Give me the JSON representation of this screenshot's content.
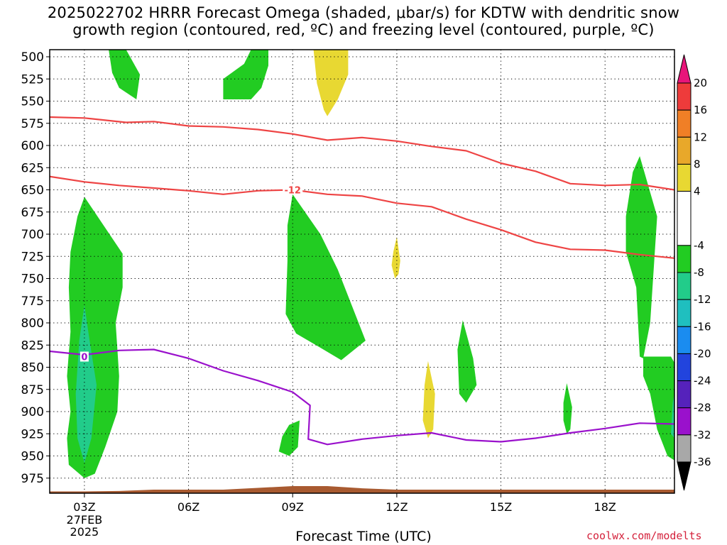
{
  "header": {
    "title_line1": "2025022702 HRRR Forecast Omega (shaded, μbar/s) for KDTW with dendritic snow",
    "title_line2": "growth region (contoured, red, ºC) and freezing level (contoured, purple, ºC)"
  },
  "footer": {
    "xlabel": "Forecast Time (UTC)",
    "credit": "coolwx.com/modelts"
  },
  "chart_data": {
    "type": "heatmap",
    "title": "2025022702 HRRR Forecast Omega (shaded, μbar/s) for KDTW with dendritic snow growth region (contoured, red, ºC) and freezing level (contoured, purple, ºC)",
    "xlabel": "Forecast Time (UTC)",
    "ylabel": "",
    "x_ticks": [
      {
        "hour": 3,
        "label": "03Z",
        "sublabels": [
          "27FEB",
          "2025"
        ]
      },
      {
        "hour": 6,
        "label": "06Z",
        "sublabels": []
      },
      {
        "hour": 9,
        "label": "09Z",
        "sublabels": []
      },
      {
        "hour": 12,
        "label": "12Z",
        "sublabels": []
      },
      {
        "hour": 15,
        "label": "15Z",
        "sublabels": []
      },
      {
        "hour": 18,
        "label": "18Z",
        "sublabels": []
      }
    ],
    "xlim": [
      2,
      20
    ],
    "y_ticks": [
      500,
      525,
      550,
      575,
      600,
      625,
      650,
      675,
      700,
      725,
      750,
      775,
      800,
      825,
      850,
      875,
      900,
      925,
      950,
      975
    ],
    "ylim": [
      492,
      992
    ],
    "grid": true,
    "colorbar": {
      "ticks": [
        20,
        16,
        12,
        8,
        4,
        -4,
        -8,
        -12,
        -16,
        -20,
        -24,
        -28,
        -32,
        -36
      ],
      "bins": [
        {
          "from": 16,
          "to": 20,
          "color": "#ee3b3b"
        },
        {
          "from": 12,
          "to": 16,
          "color": "#f07f26"
        },
        {
          "from": 8,
          "to": 12,
          "color": "#e8a82a"
        },
        {
          "from": 4,
          "to": 8,
          "color": "#e8d832"
        },
        {
          "from": -4,
          "to": 4,
          "color": "#ffffff"
        },
        {
          "from": -8,
          "to": -4,
          "color": "#22cc22"
        },
        {
          "from": -12,
          "to": -8,
          "color": "#22cc8a"
        },
        {
          "from": -16,
          "to": -12,
          "color": "#1fbfbf"
        },
        {
          "from": -20,
          "to": -16,
          "color": "#1a8cf0"
        },
        {
          "from": -24,
          "to": -20,
          "color": "#2244dd"
        },
        {
          "from": -28,
          "to": -24,
          "color": "#5522bb"
        },
        {
          "from": -32,
          "to": -28,
          "color": "#9a11cc"
        },
        {
          "from": -36,
          "to": -32,
          "color": "#a8a8a8"
        }
      ],
      "top_arrow_color": "#e8157a",
      "bottom_arrow_color": "#000000"
    },
    "omega_regions": [
      {
        "color": "#22cc22",
        "points": [
          [
            3.7,
            492
          ],
          [
            4.2,
            492
          ],
          [
            4.6,
            520
          ],
          [
            4.5,
            548
          ],
          [
            4.0,
            535
          ],
          [
            3.8,
            518
          ]
        ]
      },
      {
        "color": "#22cc22",
        "points": [
          [
            7.0,
            525
          ],
          [
            7.6,
            508
          ],
          [
            7.8,
            492
          ],
          [
            8.3,
            492
          ],
          [
            8.3,
            510
          ],
          [
            8.1,
            535
          ],
          [
            7.8,
            548
          ],
          [
            7.0,
            548
          ]
        ]
      },
      {
        "color": "#e8d832",
        "points": [
          [
            9.6,
            492
          ],
          [
            10.6,
            492
          ],
          [
            10.6,
            520
          ],
          [
            10.3,
            548
          ],
          [
            10.0,
            567
          ],
          [
            9.9,
            560
          ],
          [
            9.7,
            530
          ]
        ]
      },
      {
        "color": "#22cc22",
        "points": [
          [
            3.0,
            658
          ],
          [
            4.1,
            722
          ],
          [
            4.1,
            760
          ],
          [
            3.9,
            800
          ],
          [
            4.0,
            860
          ],
          [
            3.95,
            900
          ],
          [
            3.6,
            940
          ],
          [
            3.3,
            970
          ],
          [
            3.0,
            975
          ],
          [
            2.55,
            960
          ],
          [
            2.5,
            930
          ],
          [
            2.6,
            900
          ],
          [
            2.5,
            860
          ],
          [
            2.6,
            810
          ],
          [
            2.55,
            760
          ],
          [
            2.6,
            720
          ],
          [
            2.8,
            680
          ]
        ]
      },
      {
        "color": "#22cc8a",
        "points": [
          [
            3.0,
            780
          ],
          [
            3.15,
            820
          ],
          [
            3.35,
            870
          ],
          [
            3.2,
            930
          ],
          [
            3.0,
            958
          ],
          [
            2.8,
            930
          ],
          [
            2.75,
            880
          ],
          [
            2.85,
            820
          ]
        ]
      },
      {
        "color": "#22cc22",
        "points": [
          [
            9.0,
            655
          ],
          [
            9.8,
            700
          ],
          [
            10.3,
            740
          ],
          [
            11.1,
            820
          ],
          [
            10.4,
            842
          ],
          [
            9.8,
            828
          ],
          [
            9.1,
            812
          ],
          [
            8.8,
            790
          ],
          [
            8.85,
            730
          ],
          [
            8.85,
            690
          ]
        ]
      },
      {
        "color": "#e8d832",
        "points": [
          [
            12.0,
            703
          ],
          [
            12.1,
            730
          ],
          [
            12.05,
            745
          ],
          [
            11.95,
            750
          ],
          [
            11.85,
            735
          ],
          [
            11.9,
            720
          ]
        ]
      },
      {
        "color": "#22cc22",
        "points": [
          [
            8.9,
            915
          ],
          [
            9.2,
            910
          ],
          [
            9.15,
            940
          ],
          [
            8.9,
            950
          ],
          [
            8.6,
            945
          ],
          [
            8.7,
            928
          ]
        ]
      },
      {
        "color": "#e8d832",
        "points": [
          [
            12.9,
            843
          ],
          [
            13.1,
            880
          ],
          [
            13.05,
            920
          ],
          [
            12.9,
            930
          ],
          [
            12.75,
            910
          ],
          [
            12.8,
            870
          ]
        ]
      },
      {
        "color": "#22cc22",
        "points": [
          [
            13.9,
            797
          ],
          [
            14.2,
            840
          ],
          [
            14.3,
            870
          ],
          [
            14.0,
            890
          ],
          [
            13.8,
            880
          ],
          [
            13.75,
            830
          ]
        ]
      },
      {
        "color": "#22cc22",
        "points": [
          [
            16.9,
            868
          ],
          [
            17.05,
            895
          ],
          [
            17.0,
            920
          ],
          [
            16.9,
            925
          ],
          [
            16.8,
            910
          ],
          [
            16.8,
            890
          ]
        ]
      },
      {
        "color": "#22cc22",
        "points": [
          [
            19.0,
            612
          ],
          [
            19.5,
            680
          ],
          [
            19.3,
            800
          ],
          [
            19.1,
            840
          ],
          [
            19.0,
            838
          ],
          [
            18.9,
            760
          ],
          [
            18.6,
            720
          ],
          [
            18.6,
            680
          ],
          [
            18.8,
            630
          ]
        ]
      },
      {
        "color": "#22cc22",
        "points": [
          [
            19.1,
            838
          ],
          [
            19.9,
            838
          ],
          [
            20.0,
            845
          ],
          [
            20.0,
            955
          ],
          [
            19.8,
            950
          ],
          [
            19.5,
            920
          ],
          [
            19.3,
            880
          ],
          [
            19.1,
            860
          ]
        ]
      },
      {
        "color": "#22cc8a",
        "points": [
          [
            19.95,
            890
          ],
          [
            20.0,
            880
          ],
          [
            20.0,
            930
          ],
          [
            19.9,
            925
          ]
        ]
      }
    ],
    "isotherms": [
      {
        "name": "-18 ºC (dendritic top)",
        "color": "#ee4444",
        "label": "",
        "points": [
          [
            2,
            568
          ],
          [
            3,
            569
          ],
          [
            4.2,
            574
          ],
          [
            5,
            573
          ],
          [
            6,
            578
          ],
          [
            7,
            579
          ],
          [
            8,
            582
          ],
          [
            9,
            587
          ],
          [
            10,
            594
          ],
          [
            11,
            591
          ],
          [
            12,
            595
          ],
          [
            13,
            601
          ],
          [
            14,
            606
          ],
          [
            15,
            620
          ],
          [
            16,
            629
          ],
          [
            17,
            643
          ],
          [
            18,
            645
          ],
          [
            19,
            644
          ],
          [
            20,
            650
          ]
        ]
      },
      {
        "name": "-12 ºC (dendritic bottom)",
        "color": "#ee4444",
        "label": "-12",
        "label_at": [
          9.0,
          650
        ],
        "points": [
          [
            2,
            635
          ],
          [
            3,
            641
          ],
          [
            4,
            645
          ],
          [
            5,
            648
          ],
          [
            6,
            651
          ],
          [
            7,
            655
          ],
          [
            8,
            651
          ],
          [
            9,
            650
          ],
          [
            10,
            655
          ],
          [
            11,
            657
          ],
          [
            12,
            665
          ],
          [
            13,
            669
          ],
          [
            14,
            683
          ],
          [
            15,
            695
          ],
          [
            16,
            709
          ],
          [
            17,
            717
          ],
          [
            18,
            718
          ],
          [
            19,
            723
          ],
          [
            20,
            727
          ]
        ]
      },
      {
        "name": "0 ºC (freezing level)",
        "color": "#9a11cc",
        "label": "0",
        "label_at": [
          3.0,
          838
        ],
        "points": [
          [
            2,
            832
          ],
          [
            3,
            836
          ],
          [
            4,
            831
          ],
          [
            5,
            830
          ],
          [
            6,
            840
          ],
          [
            7,
            854
          ],
          [
            8,
            865
          ],
          [
            9,
            878
          ],
          [
            9.5,
            893
          ],
          [
            9.45,
            931
          ],
          [
            10.0,
            937
          ],
          [
            11,
            931
          ],
          [
            12,
            927
          ],
          [
            13,
            924
          ],
          [
            14,
            932
          ],
          [
            15,
            934
          ],
          [
            16,
            930
          ],
          [
            17,
            924
          ],
          [
            18,
            919
          ],
          [
            19,
            913
          ],
          [
            20,
            914
          ]
        ]
      }
    ],
    "terrain": {
      "color": "#a85a30",
      "points": [
        [
          2,
          990
        ],
        [
          3,
          990
        ],
        [
          4,
          989.5
        ],
        [
          5,
          988
        ],
        [
          6,
          988
        ],
        [
          7,
          988
        ],
        [
          8,
          986
        ],
        [
          9,
          984
        ],
        [
          10,
          984
        ],
        [
          11,
          986.5
        ],
        [
          12,
          988
        ],
        [
          13,
          988
        ],
        [
          14,
          988
        ],
        [
          15,
          988
        ],
        [
          16,
          988
        ],
        [
          17,
          988
        ],
        [
          18,
          988
        ],
        [
          19,
          988
        ],
        [
          20,
          988
        ]
      ]
    }
  }
}
